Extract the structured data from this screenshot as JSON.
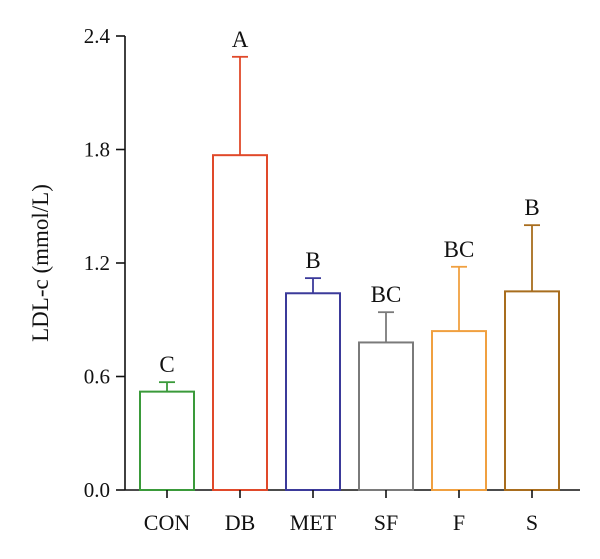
{
  "chart_data": {
    "type": "bar",
    "ylabel": "LDL-c (mmol/L)",
    "ylim": [
      0,
      2.4
    ],
    "yticks": [
      "0.0",
      "0.6",
      "1.2",
      "1.8",
      "2.4"
    ],
    "categories": [
      "CON",
      "DB",
      "MET",
      "SF",
      "F",
      "S"
    ],
    "values": [
      0.52,
      1.77,
      1.04,
      0.78,
      0.84,
      1.05
    ],
    "errors": [
      0.05,
      0.52,
      0.08,
      0.16,
      0.34,
      0.35
    ],
    "significance": [
      "C",
      "A",
      "B",
      "BC",
      "BC",
      "B"
    ],
    "colors": [
      "#3a9a3a",
      "#e0492a",
      "#3b3a9a",
      "#7a7a7a",
      "#f0a040",
      "#a86d1e"
    ],
    "grid": false
  }
}
